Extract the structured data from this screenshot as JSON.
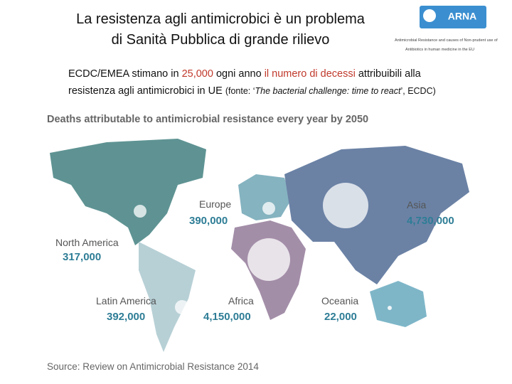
{
  "header": {
    "title_lines": [
      "La resistenza agli antimicrobici è un problema",
      "di Sanità Pubblica di grande rilievo"
    ]
  },
  "logo": {
    "name": "ARNA",
    "subtitle_lines": [
      "Antimicrobial Resistance and causes of Non-prudent use of",
      "Antibiotics in human medicine in the EU"
    ]
  },
  "body": {
    "parts": [
      "ECDC/EMEA stimano in ",
      "25,000",
      " ogni anno ",
      "il numero di decessi",
      " attribuibili alla",
      "resistenza agli antimicrobici in UE ",
      "(fonte: ‘",
      "The bacterial challenge: time to react",
      "’, ECDC)"
    ]
  },
  "infographic": {
    "title": "Deaths attributable to antimicrobial resistance every year by 2050",
    "regions": [
      {
        "name": "North America",
        "value": "317,000"
      },
      {
        "name": "Europe",
        "value": "390,000"
      },
      {
        "name": "Asia",
        "value": "4,730,000"
      },
      {
        "name": "Latin America",
        "value": "392,000"
      },
      {
        "name": "Africa",
        "value": "4,150,000"
      },
      {
        "name": "Oceania",
        "value": "22,000"
      }
    ],
    "source": "Source: Review on Antimicrobial Resistance 2014"
  }
}
